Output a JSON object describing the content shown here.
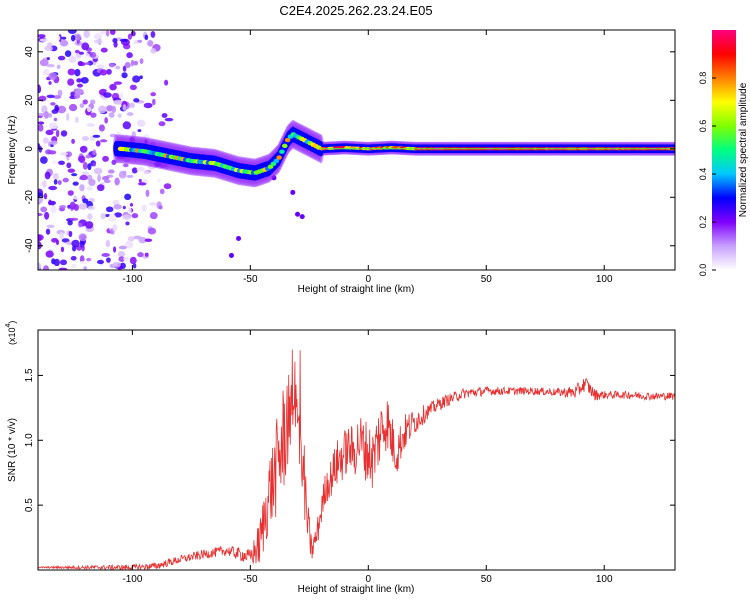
{
  "title": "C2E4.2025.262.23.24.E05",
  "chart_data": [
    {
      "type": "heatmap",
      "xlabel": "Height of straight line (km)",
      "ylabel": "Frequency (Hz)",
      "xlim": [
        -140,
        130
      ],
      "ylim": [
        -50,
        49
      ],
      "xticks": [
        -100,
        -50,
        0,
        50,
        100
      ],
      "xtick_labels": [
        "-100",
        "-50",
        "0",
        "50",
        "100"
      ],
      "yticks": [
        -40,
        -20,
        0,
        20,
        40
      ],
      "ytick_labels": [
        "-40",
        "-20",
        "0",
        "20",
        "40"
      ],
      "ridge_x": [
        -105,
        -95,
        -85,
        -75,
        -65,
        -55,
        -48,
        -42,
        -38,
        -34,
        -32,
        -28,
        -24,
        -20,
        -10,
        0,
        10,
        20,
        40,
        60,
        80,
        100,
        130
      ],
      "ridge_y": [
        0,
        -1,
        -3,
        -5,
        -6,
        -9,
        -10,
        -8,
        -4,
        4,
        6,
        4,
        2,
        0,
        0.5,
        0,
        0.5,
        0,
        0,
        0,
        0,
        0,
        0
      ],
      "colorbar": {
        "label": "Normalized spectral amplitude",
        "range": [
          0,
          1
        ],
        "ticks": [
          0,
          0.2,
          0.4,
          0.6,
          0.8
        ],
        "tick_labels": [
          "0.0",
          "0.2",
          "0.4",
          "0.6",
          "0.8"
        ],
        "colors": [
          "#ffffff",
          "#c8a0ff",
          "#8000ff",
          "#0000ff",
          "#00c8ff",
          "#00ff80",
          "#80ff00",
          "#ffff00",
          "#ff8000",
          "#ff0000",
          "#ff0080"
        ]
      }
    },
    {
      "type": "line",
      "xlabel": "Height of straight line (km)",
      "ylabel": "SNR (10 * v/v)",
      "y_multiplier_base": "(x10",
      "y_multiplier_exp": "4",
      "y_multiplier_close": ")",
      "xlim": [
        -140,
        130
      ],
      "ylim": [
        0,
        1.85
      ],
      "xticks": [
        -100,
        -50,
        0,
        50,
        100
      ],
      "xtick_labels": [
        "-100",
        "-50",
        "0",
        "50",
        "100"
      ],
      "yticks": [
        0.5,
        1.0,
        1.5
      ],
      "ytick_labels": [
        "0.5",
        "1.0",
        "1.5"
      ],
      "series_color": "#e83030",
      "envelope_x": [
        -140,
        -100,
        -90,
        -80,
        -70,
        -60,
        -50,
        -46,
        -44,
        -42,
        -40,
        -38,
        -36,
        -34,
        -32,
        -30,
        -28,
        -26,
        -24,
        -22,
        -20,
        -18,
        -16,
        -14,
        -12,
        -10,
        -8,
        -6,
        -4,
        -2,
        0,
        2,
        4,
        6,
        8,
        10,
        12,
        15,
        20,
        25,
        30,
        35,
        40,
        50,
        60,
        70,
        80,
        88,
        92,
        96,
        100,
        110,
        120,
        130
      ],
      "envelope_y": [
        0.02,
        0.02,
        0.03,
        0.08,
        0.12,
        0.15,
        0.1,
        0.2,
        0.4,
        0.6,
        0.7,
        0.85,
        1.0,
        1.2,
        1.5,
        1.1,
        0.9,
        0.4,
        0.15,
        0.25,
        0.45,
        0.65,
        0.7,
        0.8,
        0.85,
        0.9,
        0.95,
        0.9,
        1.0,
        0.95,
        0.9,
        0.85,
        1.0,
        1.1,
        1.15,
        1.0,
        0.9,
        1.05,
        1.15,
        1.22,
        1.28,
        1.32,
        1.36,
        1.38,
        1.38,
        1.38,
        1.37,
        1.37,
        1.44,
        1.35,
        1.35,
        1.35,
        1.34,
        1.34
      ],
      "noise_x": [
        -140,
        -60,
        -50,
        -44,
        -40,
        -36,
        -32,
        -28,
        -26,
        -24,
        -20,
        -16,
        -12,
        -8,
        -4,
        0,
        5,
        10,
        15,
        20,
        25,
        30,
        40,
        60,
        80,
        90,
        95,
        100,
        130
      ],
      "noise_amp": [
        0.005,
        0.04,
        0.06,
        0.25,
        0.35,
        0.45,
        0.4,
        0.35,
        0.2,
        0.1,
        0.12,
        0.15,
        0.2,
        0.18,
        0.22,
        0.25,
        0.25,
        0.2,
        0.15,
        0.1,
        0.06,
        0.05,
        0.04,
        0.03,
        0.03,
        0.06,
        0.05,
        0.03,
        0.03
      ]
    }
  ]
}
